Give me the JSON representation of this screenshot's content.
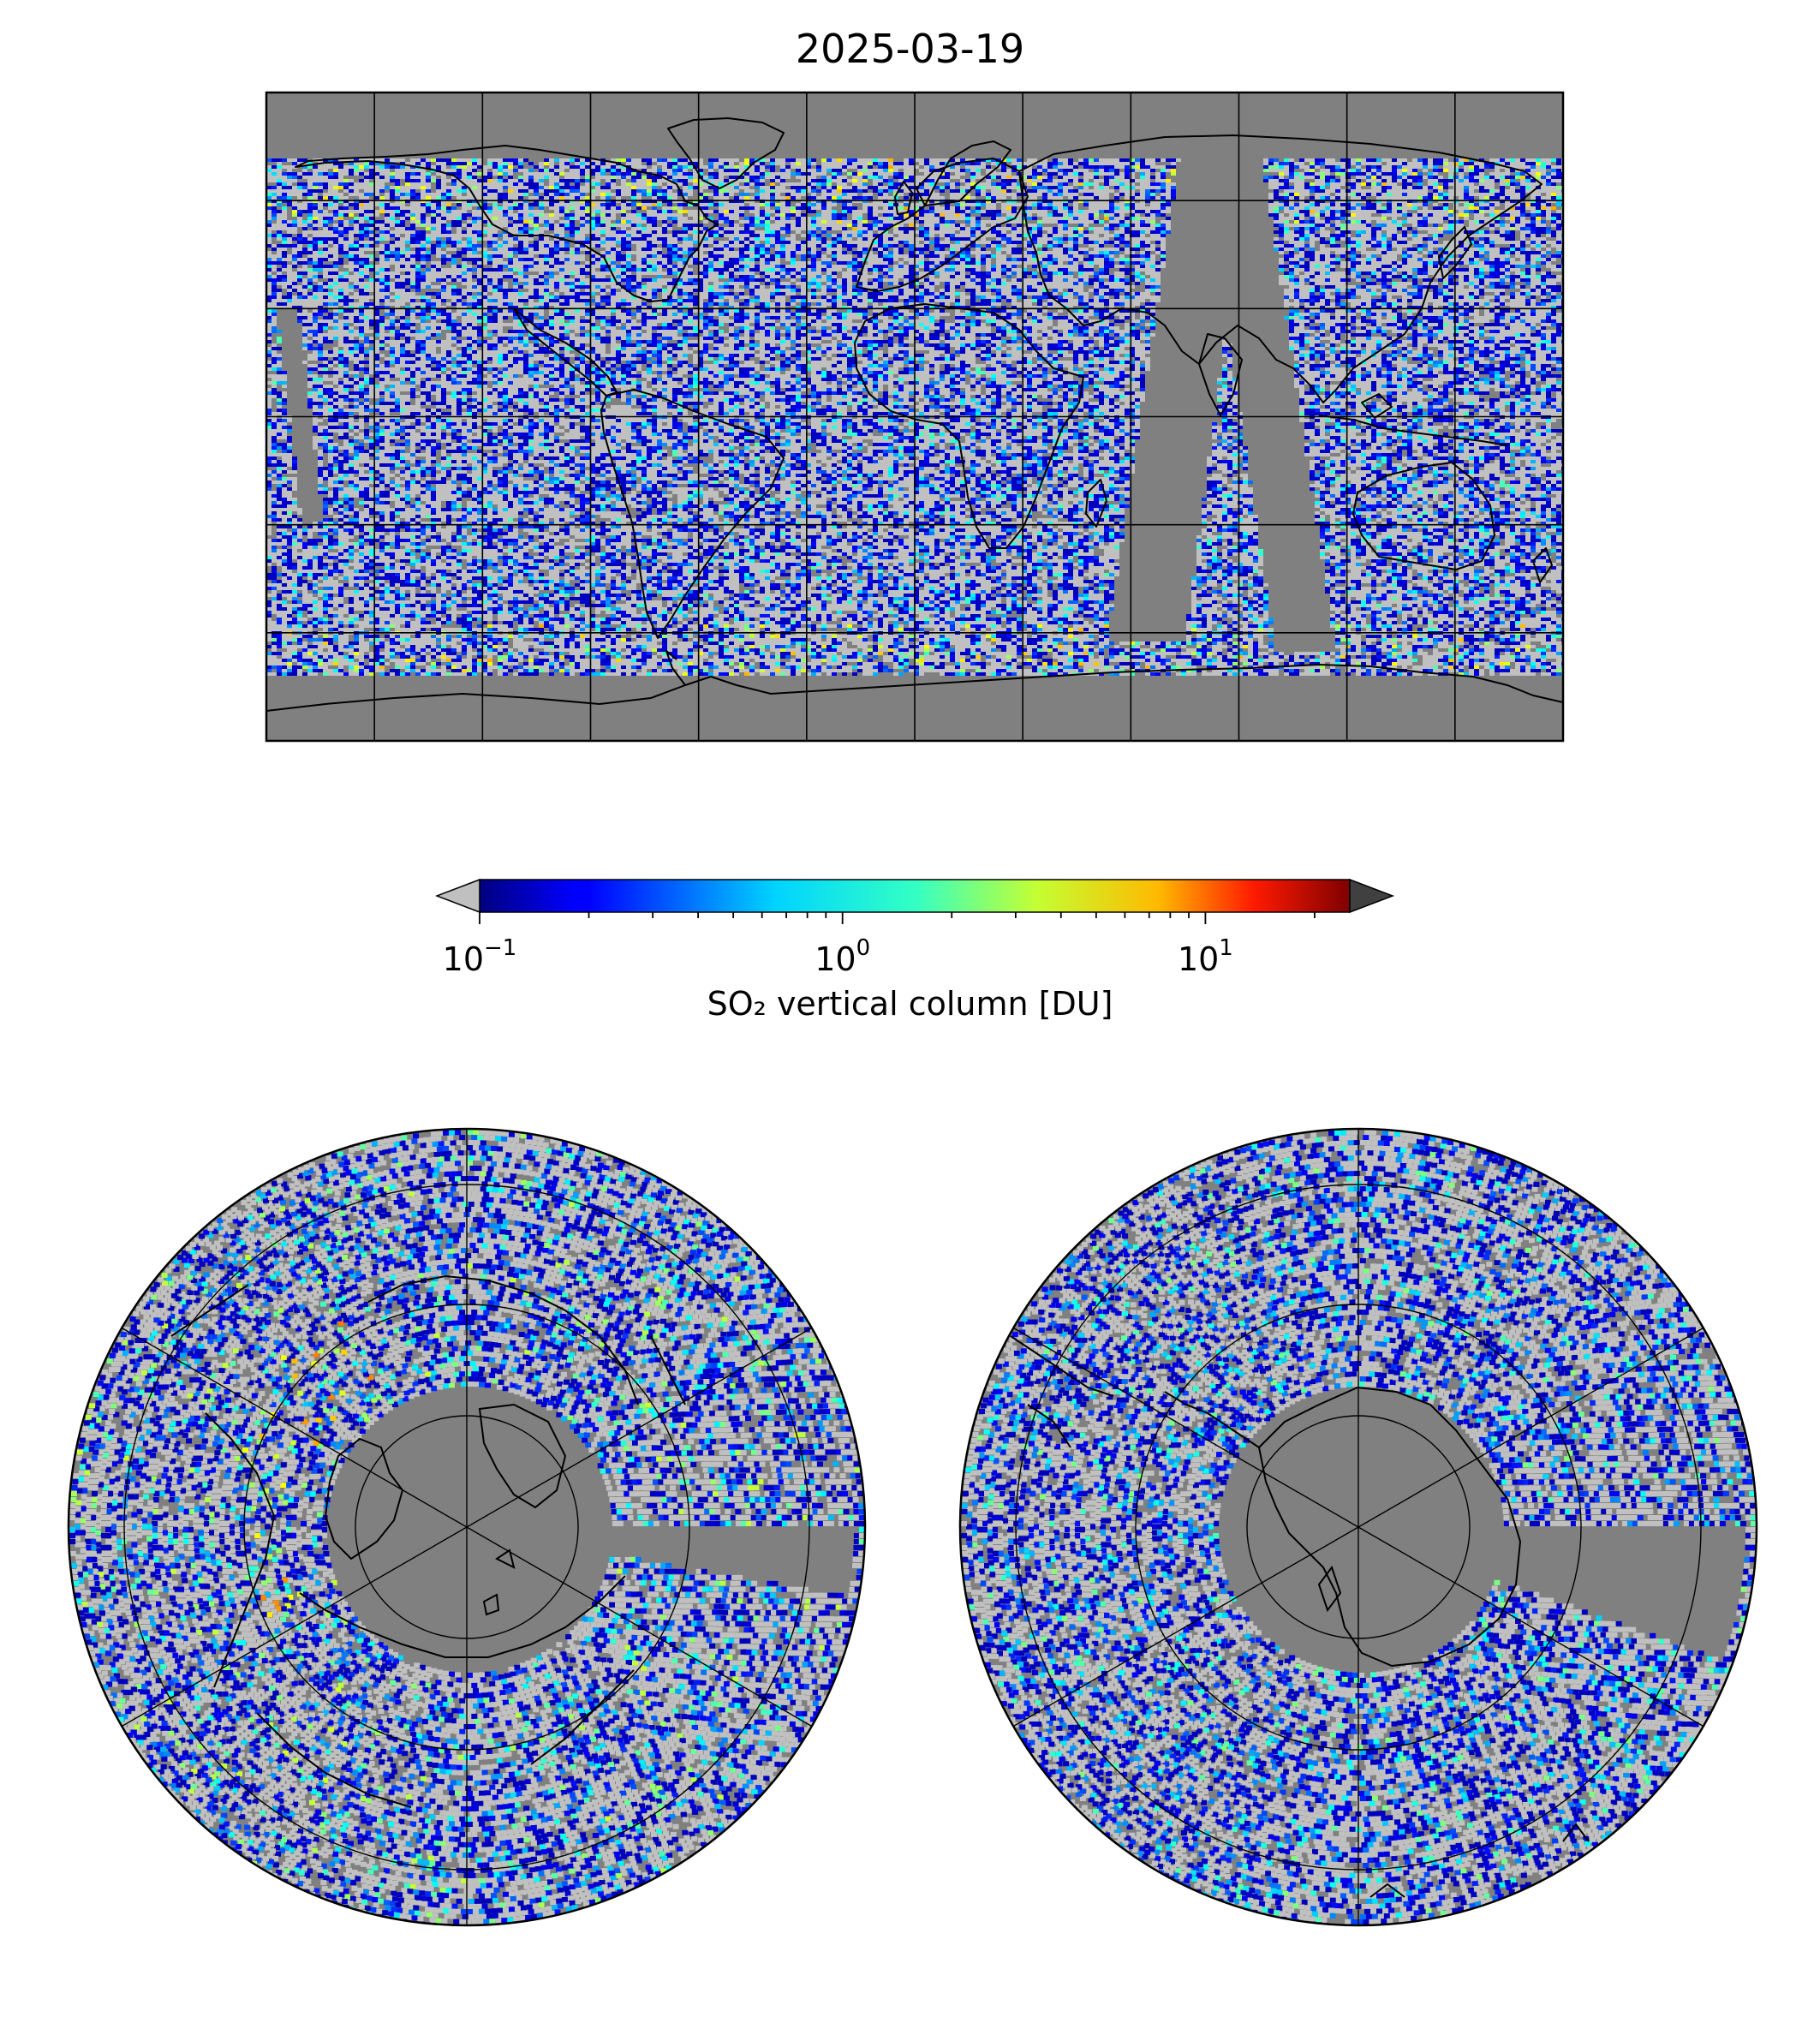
{
  "figure": {
    "title": "2025-03-19"
  },
  "colorbar": {
    "label": "SO₂ vertical column [DU]",
    "scale": "log",
    "min": 0.1,
    "max": 25,
    "extend": "both",
    "colormap": "jet",
    "under_color": "#c0c0c0",
    "over_color": "#404040",
    "ticks": [
      {
        "value": 0.1,
        "base": "10",
        "exp": "−1"
      },
      {
        "value": 1,
        "base": "10",
        "exp": "0"
      },
      {
        "value": 10,
        "base": "10",
        "exp": "1"
      }
    ]
  },
  "maps": [
    {
      "name": "global",
      "projection": "plate-carree",
      "gridline_spacing_deg": 30
    },
    {
      "name": "north-polar",
      "projection": "north-polar-stereographic"
    },
    {
      "name": "south-polar",
      "projection": "south-polar-stereographic"
    }
  ],
  "colors": {
    "no_data": "#808080",
    "below_range": "#c0c0c0",
    "coastline": "#000000",
    "gridline": "#000000"
  }
}
